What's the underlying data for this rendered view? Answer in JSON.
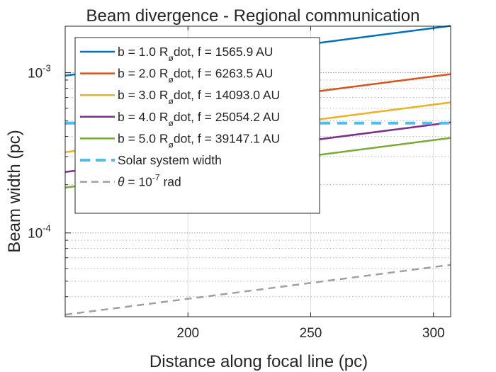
{
  "chart_data": {
    "type": "line",
    "title": "Beam divergence - Regional communication",
    "xlabel": "Distance along focal line (pc)",
    "ylabel": "Beam width (pc)",
    "xscale": "linear",
    "yscale": "log",
    "xlim": [
      150,
      307
    ],
    "ylim": [
      3e-05,
      0.00195
    ],
    "grid": true,
    "legend_position": "top-left",
    "x_ticks": [
      {
        "value": 200,
        "label": "200"
      },
      {
        "value": 250,
        "label": "250"
      },
      {
        "value": 300,
        "label": "300"
      }
    ],
    "y_ticks": [
      {
        "value": 0.0001,
        "base": "10",
        "exp": "-4"
      },
      {
        "value": 0.001,
        "base": "10",
        "exp": "-3"
      }
    ],
    "series": [
      {
        "name": "b = 1.0 R",
        "sub": "ø",
        "suffix": "dot, f = 1565.9 AU",
        "color": "#0072BD",
        "dash": "solid",
        "x": [
          150,
          307
        ],
        "y": [
          0.000958,
          0.00196
        ]
      },
      {
        "name": "b = 2.0 R",
        "sub": "ø",
        "suffix": "dot, f = 6263.5 AU",
        "color": "#D95319",
        "dash": "solid",
        "x": [
          150,
          307
        ],
        "y": [
          0.000479,
          0.00098
        ]
      },
      {
        "name": "b = 3.0 R",
        "sub": "ø",
        "suffix": "dot, f = 14093.0 AU",
        "color": "#EDB120",
        "dash": "solid",
        "x": [
          150,
          307
        ],
        "y": [
          0.000319,
          0.000653
        ]
      },
      {
        "name": "b = 4.0 R",
        "sub": "ø",
        "suffix": "dot, f = 25054.2 AU",
        "color": "#7E2F8E",
        "dash": "solid",
        "x": [
          150,
          307
        ],
        "y": [
          0.00024,
          0.00049
        ]
      },
      {
        "name": "b = 5.0 R",
        "sub": "ø",
        "suffix": "dot, f = 39147.1 AU",
        "color": "#77AC30",
        "dash": "solid",
        "x": [
          150,
          307
        ],
        "y": [
          0.000192,
          0.000392
        ]
      },
      {
        "name": "Solar system width",
        "color": "#4DBEEE",
        "dash": "dashed",
        "x": [
          150,
          307
        ],
        "y": [
          0.000485,
          0.000485
        ]
      },
      {
        "name": "θ = 10",
        "sup": "-7",
        "suffix": " rad",
        "color": "#A0A0A0",
        "dash": "dashed",
        "x": [
          150,
          307
        ],
        "y": [
          3.09e-05,
          6.32e-05
        ]
      }
    ]
  }
}
